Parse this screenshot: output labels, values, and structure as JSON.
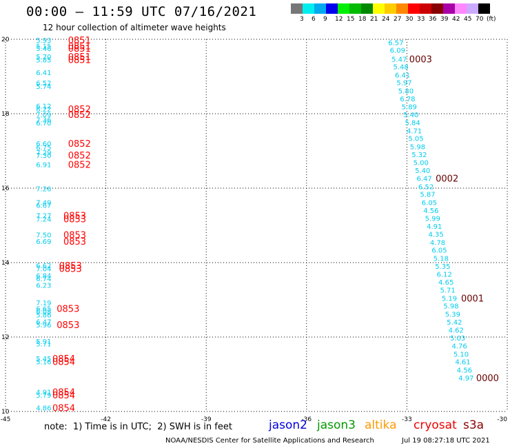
{
  "header": {
    "title": "00:00 – 11:59 UTC 07/16/2021",
    "subtitle": "12 hour collection of altimeter wave heights"
  },
  "legend": {
    "unit": "(ft)",
    "colors": [
      "#777777",
      "#00eeee",
      "#00aaee",
      "#0000ee",
      "#00ee00",
      "#00bb00",
      "#008800",
      "#ffff00",
      "#ffcc00",
      "#ff8800",
      "#ff0000",
      "#cc0000",
      "#880000",
      "#aa00aa",
      "#ff88ff",
      "#ccaaff",
      "#000000"
    ],
    "labels": [
      "3",
      "6",
      "9",
      "12",
      "15",
      "18",
      "21",
      "24",
      "27",
      "30",
      "33",
      "36",
      "39",
      "42",
      "45",
      "70"
    ]
  },
  "axes": {
    "lon_ticks": [
      "-45",
      "-42",
      "-39",
      "-36",
      "-33",
      "-30"
    ],
    "lon_values": [
      -45,
      -42,
      -39,
      -36,
      -33,
      -30
    ],
    "lat_ticks": [
      "20",
      "18",
      "16",
      "14",
      "12",
      "10"
    ],
    "lat_values": [
      20,
      18,
      16,
      14,
      12,
      10
    ]
  },
  "map_data": {
    "swh_color": "#00ccee",
    "obs": [
      {
        "lon": -43.86,
        "lat": 19.98,
        "v": "5.93"
      },
      {
        "lon": -43.86,
        "lat": 19.82,
        "v": "5.15"
      },
      {
        "lon": -43.86,
        "lat": 19.76,
        "v": "5.46"
      },
      {
        "lon": -43.86,
        "lat": 19.54,
        "v": "5.70"
      },
      {
        "lon": -43.86,
        "lat": 19.45,
        "v": "5.85"
      },
      {
        "lon": -43.86,
        "lat": 19.11,
        "v": "6.41"
      },
      {
        "lon": -43.86,
        "lat": 18.83,
        "v": "6.52"
      },
      {
        "lon": -43.86,
        "lat": 18.74,
        "v": "5.74"
      },
      {
        "lon": -43.86,
        "lat": 18.21,
        "v": "6.12"
      },
      {
        "lon": -43.86,
        "lat": 18.13,
        "v": "6.22"
      },
      {
        "lon": -43.86,
        "lat": 17.98,
        "v": "7.09"
      },
      {
        "lon": -43.86,
        "lat": 17.84,
        "v": "7.36"
      },
      {
        "lon": -43.86,
        "lat": 17.76,
        "v": "6.70"
      },
      {
        "lon": -43.86,
        "lat": 17.2,
        "v": "6.60"
      },
      {
        "lon": -43.86,
        "lat": 17.1,
        "v": "6.75"
      },
      {
        "lon": -43.86,
        "lat": 16.96,
        "v": "7.29"
      },
      {
        "lon": -43.86,
        "lat": 16.89,
        "v": "7.30"
      },
      {
        "lon": -43.86,
        "lat": 16.64,
        "v": "6.91"
      },
      {
        "lon": -43.86,
        "lat": 15.99,
        "v": "7.26"
      },
      {
        "lon": -43.86,
        "lat": 15.62,
        "v": "7.49"
      },
      {
        "lon": -43.86,
        "lat": 15.55,
        "v": "6.67"
      },
      {
        "lon": -43.86,
        "lat": 15.27,
        "v": "7.27"
      },
      {
        "lon": -43.86,
        "lat": 15.18,
        "v": "7.24"
      },
      {
        "lon": -43.86,
        "lat": 14.75,
        "v": "7.50"
      },
      {
        "lon": -43.86,
        "lat": 14.57,
        "v": "6.69"
      },
      {
        "lon": -43.86,
        "lat": 13.93,
        "v": "6.62"
      },
      {
        "lon": -43.86,
        "lat": 13.84,
        "v": "7.04"
      },
      {
        "lon": -43.86,
        "lat": 13.66,
        "v": "6.84"
      },
      {
        "lon": -43.86,
        "lat": 13.57,
        "v": "6.74"
      },
      {
        "lon": -43.86,
        "lat": 13.4,
        "v": "6.23"
      },
      {
        "lon": -43.86,
        "lat": 12.93,
        "v": "7.19"
      },
      {
        "lon": -43.86,
        "lat": 12.77,
        "v": "6.65"
      },
      {
        "lon": -43.86,
        "lat": 12.69,
        "v": "6.08"
      },
      {
        "lon": -43.86,
        "lat": 12.6,
        "v": "5.86"
      },
      {
        "lon": -43.86,
        "lat": 12.42,
        "v": "6.47"
      },
      {
        "lon": -43.86,
        "lat": 12.33,
        "v": "5.96"
      },
      {
        "lon": -43.86,
        "lat": 11.89,
        "v": "5.91"
      },
      {
        "lon": -43.86,
        "lat": 11.82,
        "v": "5.71"
      },
      {
        "lon": -43.86,
        "lat": 11.43,
        "v": "5.45"
      },
      {
        "lon": -43.86,
        "lat": 11.34,
        "v": "5.16"
      },
      {
        "lon": -43.86,
        "lat": 10.53,
        "v": "4.91"
      },
      {
        "lon": -43.86,
        "lat": 10.44,
        "v": "5.79"
      },
      {
        "lon": -43.86,
        "lat": 10.1,
        "v": "4.86"
      },
      {
        "lon": -33.33,
        "lat": 19.92,
        "v": "6.57"
      },
      {
        "lon": -33.28,
        "lat": 19.71,
        "v": "6.09"
      },
      {
        "lon": -33.23,
        "lat": 19.47,
        "v": "5.47"
      },
      {
        "lon": -33.18,
        "lat": 19.27,
        "v": "5.48"
      },
      {
        "lon": -33.13,
        "lat": 19.05,
        "v": "6.41"
      },
      {
        "lon": -33.08,
        "lat": 18.84,
        "v": "5.97"
      },
      {
        "lon": -33.03,
        "lat": 18.62,
        "v": "5.80"
      },
      {
        "lon": -32.98,
        "lat": 18.41,
        "v": "6.78"
      },
      {
        "lon": -32.93,
        "lat": 18.19,
        "v": "5.89"
      },
      {
        "lon": -32.88,
        "lat": 17.98,
        "v": "5.40"
      },
      {
        "lon": -32.83,
        "lat": 17.77,
        "v": "5.84"
      },
      {
        "lon": -32.78,
        "lat": 17.55,
        "v": "4.71"
      },
      {
        "lon": -32.73,
        "lat": 17.34,
        "v": "5.05"
      },
      {
        "lon": -32.68,
        "lat": 17.12,
        "v": "5.98"
      },
      {
        "lon": -32.63,
        "lat": 16.91,
        "v": "5.32"
      },
      {
        "lon": -32.58,
        "lat": 16.69,
        "v": "5.00"
      },
      {
        "lon": -32.53,
        "lat": 16.48,
        "v": "5.40"
      },
      {
        "lon": -32.48,
        "lat": 16.27,
        "v": "6.47"
      },
      {
        "lon": -32.43,
        "lat": 16.05,
        "v": "6.52"
      },
      {
        "lon": -32.38,
        "lat": 15.84,
        "v": "5.87"
      },
      {
        "lon": -32.33,
        "lat": 15.62,
        "v": "6.05"
      },
      {
        "lon": -32.28,
        "lat": 15.41,
        "v": "4.56"
      },
      {
        "lon": -32.23,
        "lat": 15.19,
        "v": "5.99"
      },
      {
        "lon": -32.18,
        "lat": 14.98,
        "v": "4.91"
      },
      {
        "lon": -32.13,
        "lat": 14.77,
        "v": "4.35"
      },
      {
        "lon": -32.08,
        "lat": 14.55,
        "v": "4.78"
      },
      {
        "lon": -32.03,
        "lat": 14.34,
        "v": "6.05"
      },
      {
        "lon": -31.98,
        "lat": 14.12,
        "v": "5.18"
      },
      {
        "lon": -31.93,
        "lat": 13.91,
        "v": "5.35"
      },
      {
        "lon": -31.88,
        "lat": 13.69,
        "v": "6.12"
      },
      {
        "lon": -31.83,
        "lat": 13.48,
        "v": "4.65"
      },
      {
        "lon": -31.78,
        "lat": 13.27,
        "v": "5.71"
      },
      {
        "lon": -31.73,
        "lat": 13.05,
        "v": "5.19"
      },
      {
        "lon": -31.68,
        "lat": 12.84,
        "v": "5.98"
      },
      {
        "lon": -31.63,
        "lat": 12.62,
        "v": "5.39"
      },
      {
        "lon": -31.58,
        "lat": 12.41,
        "v": "5.42"
      },
      {
        "lon": -31.53,
        "lat": 12.19,
        "v": "4.62"
      },
      {
        "lon": -31.48,
        "lat": 11.98,
        "v": "5.03"
      },
      {
        "lon": -31.43,
        "lat": 11.77,
        "v": "4.76"
      },
      {
        "lon": -31.38,
        "lat": 11.55,
        "v": "5.10"
      },
      {
        "lon": -31.33,
        "lat": 11.34,
        "v": "4.61"
      },
      {
        "lon": -31.28,
        "lat": 11.12,
        "v": "4.56"
      },
      {
        "lon": -31.23,
        "lat": 10.91,
        "v": "4.97"
      }
    ],
    "times": [
      {
        "lon": -43.13,
        "lat": 19.98,
        "t": "0851",
        "color": "#ff0000"
      },
      {
        "lon": -43.13,
        "lat": 19.82,
        "t": "0851",
        "color": "#ff0000"
      },
      {
        "lon": -43.13,
        "lat": 19.76,
        "t": "0851",
        "color": "#ff0000"
      },
      {
        "lon": -43.13,
        "lat": 19.54,
        "t": "0851",
        "color": "#ff0000"
      },
      {
        "lon": -43.13,
        "lat": 19.45,
        "t": "0851",
        "color": "#ff0000"
      },
      {
        "lon": -43.13,
        "lat": 18.13,
        "t": "0852",
        "color": "#ff0000"
      },
      {
        "lon": -43.13,
        "lat": 17.98,
        "t": "0852",
        "color": "#ff0000"
      },
      {
        "lon": -43.13,
        "lat": 17.2,
        "t": "0852",
        "color": "#ff0000"
      },
      {
        "lon": -43.13,
        "lat": 16.89,
        "t": "0852",
        "color": "#ff0000"
      },
      {
        "lon": -43.13,
        "lat": 16.64,
        "t": "0852",
        "color": "#ff0000"
      },
      {
        "lon": -43.27,
        "lat": 15.27,
        "t": "0853",
        "color": "#ff0000"
      },
      {
        "lon": -43.27,
        "lat": 15.18,
        "t": "0853",
        "color": "#ff0000"
      },
      {
        "lon": -43.27,
        "lat": 14.75,
        "t": "0853",
        "color": "#ff0000"
      },
      {
        "lon": -43.27,
        "lat": 14.57,
        "t": "0853",
        "color": "#ff0000"
      },
      {
        "lon": -43.4,
        "lat": 13.93,
        "t": "0853",
        "color": "#ff0000"
      },
      {
        "lon": -43.4,
        "lat": 13.84,
        "t": "0853",
        "color": "#ff0000"
      },
      {
        "lon": -43.47,
        "lat": 12.77,
        "t": "0853",
        "color": "#ff0000"
      },
      {
        "lon": -43.47,
        "lat": 12.33,
        "t": "0853",
        "color": "#ff0000"
      },
      {
        "lon": -43.6,
        "lat": 11.43,
        "t": "0854",
        "color": "#ff0000"
      },
      {
        "lon": -43.6,
        "lat": 11.34,
        "t": "0854",
        "color": "#ff0000"
      },
      {
        "lon": -43.6,
        "lat": 10.53,
        "t": "0854",
        "color": "#ff0000"
      },
      {
        "lon": -43.6,
        "lat": 10.44,
        "t": "0854",
        "color": "#ff0000"
      },
      {
        "lon": -43.6,
        "lat": 10.1,
        "t": "0854",
        "color": "#ff0000"
      },
      {
        "lon": -32.93,
        "lat": 19.47,
        "t": "0003",
        "color": "#660000"
      },
      {
        "lon": -32.14,
        "lat": 16.27,
        "t": "0002",
        "color": "#660000"
      },
      {
        "lon": -31.38,
        "lat": 13.05,
        "t": "0001",
        "color": "#660000"
      },
      {
        "lon": -30.93,
        "lat": 10.91,
        "t": "0000",
        "color": "#660000"
      }
    ]
  },
  "footer": {
    "note": "note:  1) Time is in UTC;  2) SWH is in feet",
    "satellites": [
      {
        "name": "jason2",
        "color": "#0000dd"
      },
      {
        "name": "jason3",
        "color": "#009900"
      },
      {
        "name": "altika",
        "color": "#ff9900"
      },
      {
        "name": "cryosat",
        "color": "#ee0000"
      },
      {
        "name": "s3a",
        "color": "#880000"
      }
    ],
    "credit": "NOAA/NESDIS Center for Satellite Applications and Research",
    "credit_time": "Jul 19 08:27:18 UTC 2021"
  }
}
